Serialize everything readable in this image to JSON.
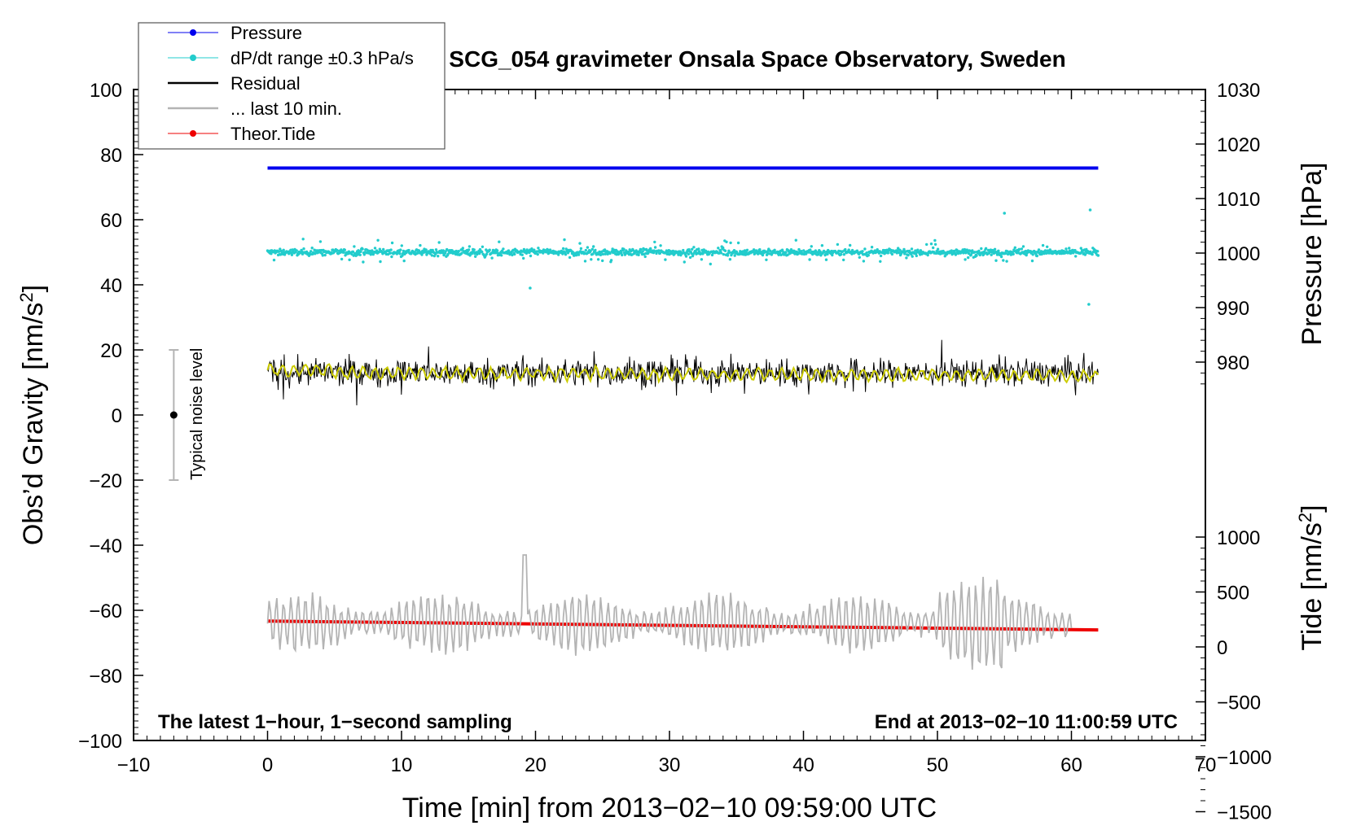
{
  "chart_data": {
    "type": "line",
    "title": "SCG_054 gravimeter Onsala Space Observatory, Sweden",
    "xlabel": "Time [min] from 2013−02−10 09:59:00 UTC",
    "ylabel_left_main": "Obs’d Gravity [nm/s",
    "ylabel_left_sup": "2",
    "ylabel_left_end": "]",
    "ylabel_right_pressure": "Pressure [hPa]",
    "ylabel_right_tide_main": "Tide [nm/s",
    "ylabel_right_tide_sup": "2",
    "ylabel_right_tide_end": "]",
    "xlim": [
      -10,
      70
    ],
    "ylim_left": [
      -100,
      100
    ],
    "ylim_pressure": [
      975,
      1030
    ],
    "ylim_tide": [
      -1500,
      1000
    ],
    "x_ticks": [
      "−10",
      "0",
      "10",
      "20",
      "30",
      "40",
      "50",
      "60",
      "70"
    ],
    "y_ticks_left": [
      "−100",
      "−80",
      "−60",
      "−40",
      "−20",
      "0",
      "20",
      "40",
      "60",
      "80",
      "100"
    ],
    "y_ticks_pressure": [
      "980",
      "990",
      "1000",
      "1010",
      "1020",
      "1030"
    ],
    "y_ticks_tide": [
      "−1500",
      "−1000",
      "−500",
      "0",
      "500",
      "1000"
    ],
    "legend": [
      {
        "label": "Pressure",
        "color": "#0000ee",
        "marker": "dot"
      },
      {
        "label": "dP/dt range ±0.3 hPa/s",
        "color": "#22cccc",
        "marker": "dot"
      },
      {
        "label": "Residual",
        "color": "#000000",
        "marker": "line"
      },
      {
        "label": "... last 10 min.",
        "color": "#b4b4b4",
        "marker": "line"
      },
      {
        "label": "Theor.Tide",
        "color": "#ee0000",
        "marker": "dot"
      }
    ],
    "series": [
      {
        "name": "Pressure",
        "axis": "pressure",
        "color": "#0000ee",
        "x_range": [
          0,
          62
        ],
        "values_hpa": [
          1015.6,
          1015.6
        ]
      },
      {
        "name": "dP/dt range ±0.3 hPa/s",
        "axis": "left",
        "color": "#22cccc",
        "x_range": [
          0,
          62
        ],
        "center": 50,
        "spread": 6
      },
      {
        "name": "Residual",
        "axis": "left",
        "color": "#000000",
        "x_range": [
          0,
          62
        ],
        "center": 13,
        "spread": 15
      },
      {
        "name": "Residual (smoothed)",
        "axis": "left",
        "color": "#cccc00",
        "x_range": [
          0,
          62
        ],
        "center": 13,
        "spread": 2
      },
      {
        "name": "... last 10 min.",
        "axis": "left",
        "color": "#b4b4b4",
        "x_range": [
          0,
          60
        ],
        "center": -64,
        "spread": 12
      },
      {
        "name": "Theor.Tide",
        "axis": "tide",
        "color": "#ee0000",
        "x": [
          0,
          62
        ],
        "values": [
          235,
          155
        ]
      }
    ],
    "noise_bar": {
      "label": "Typical noise level",
      "x": -7,
      "center": 0,
      "low": -20,
      "high": 20
    },
    "annotation_left": "The latest 1−hour, 1−second sampling",
    "annotation_right": "End at 2013−02−10 11:00:59 UTC"
  }
}
